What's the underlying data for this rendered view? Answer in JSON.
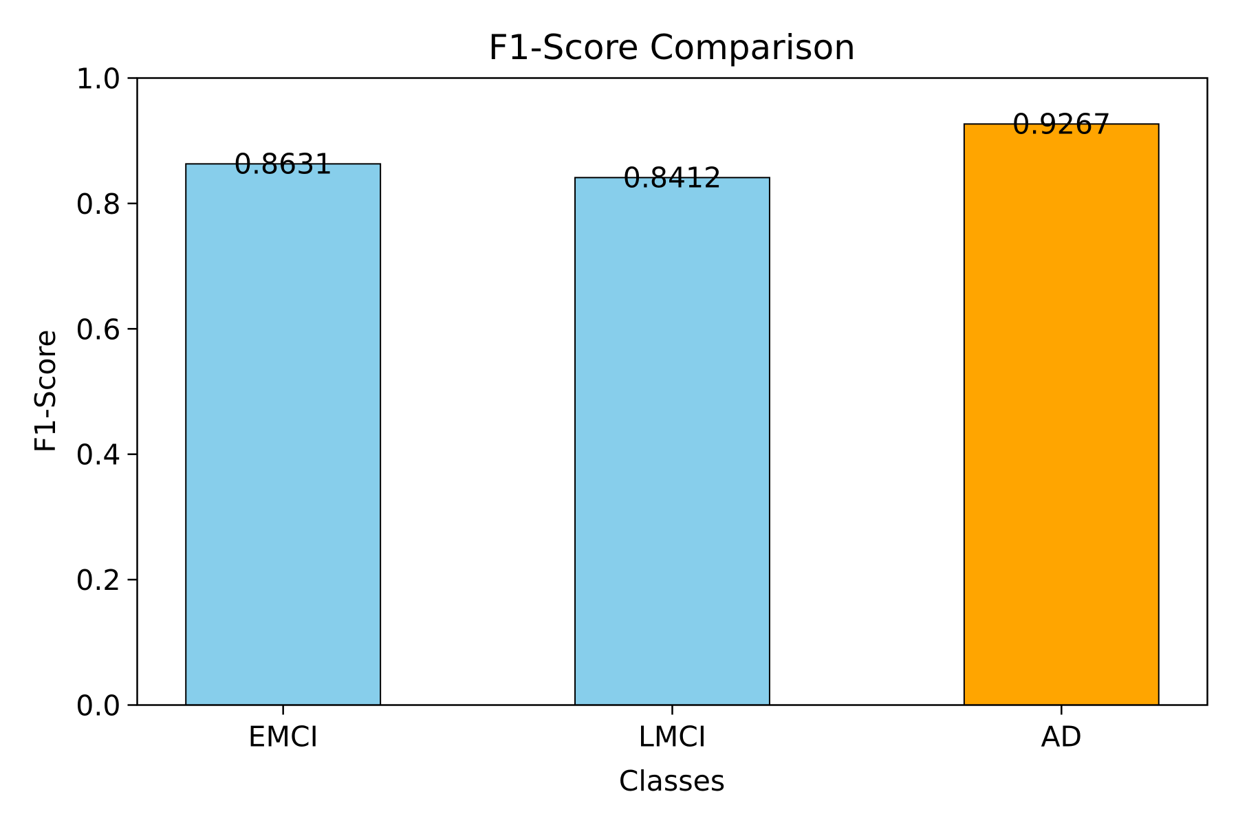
{
  "chart_data": {
    "type": "bar",
    "title": "F1-Score Comparison",
    "xlabel": "Classes",
    "ylabel": "F1-Score",
    "categories": [
      "EMCI",
      "LMCI",
      "AD"
    ],
    "values": [
      0.8631,
      0.8412,
      0.9267
    ],
    "value_labels": [
      "0.8631",
      "0.8412",
      "0.9267"
    ],
    "bar_colors": [
      "#87CEEB",
      "#87CEEB",
      "#FFA500"
    ],
    "edge_color": "#000000",
    "ylim": [
      0,
      1.0
    ],
    "yticks": [
      "0.0",
      "0.2",
      "0.4",
      "0.6",
      "0.8",
      "1.0"
    ],
    "grid": false
  }
}
